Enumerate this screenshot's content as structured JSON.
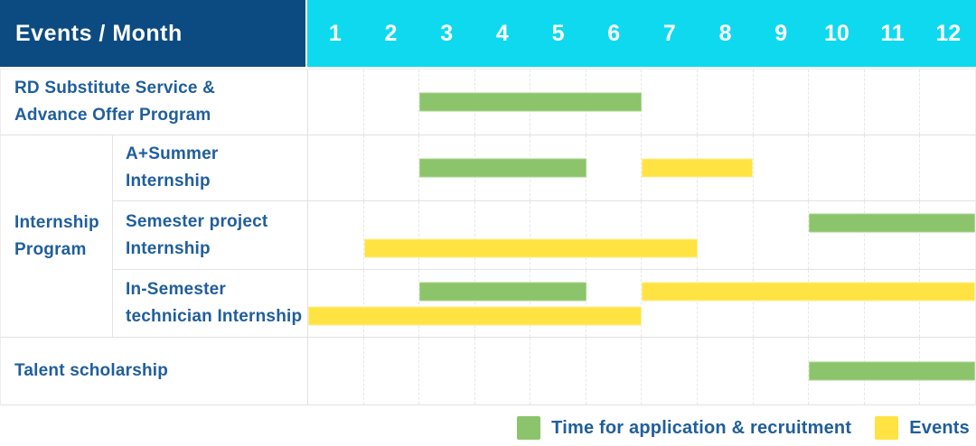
{
  "colors": {
    "header_bg": "#0B4B81",
    "months_bg": "#0FD9EF",
    "bar_green": "#8CC46B",
    "bar_yellow": "#FFE342",
    "label_text": "#1F5E9C"
  },
  "header": {
    "title": "Events / Month",
    "months": [
      "1",
      "2",
      "3",
      "4",
      "5",
      "6",
      "7",
      "8",
      "9",
      "10",
      "11",
      "12"
    ]
  },
  "rows": [
    {
      "kind": "simple",
      "id": "rd-substitute",
      "label_lines": [
        "RD Substitute Service &",
        "Advance Offer Program"
      ],
      "bars": [
        {
          "color": "green",
          "start": 3,
          "end": 6,
          "lane": "single"
        }
      ]
    },
    {
      "kind": "group",
      "id": "internship-program",
      "label_lines": [
        "Internship",
        "Program"
      ],
      "children": [
        {
          "id": "a-plus-summer",
          "label_lines": [
            "A+Summer",
            "Internship"
          ],
          "bars": [
            {
              "color": "green",
              "start": 3,
              "end": 5,
              "lane": "single"
            },
            {
              "color": "yellow",
              "start": 7,
              "end": 8,
              "lane": "single"
            }
          ]
        },
        {
          "id": "semester-project",
          "label_lines": [
            "Semester project",
            "Internship"
          ],
          "bars": [
            {
              "color": "green",
              "start": 10,
              "end": 12,
              "lane": "upper"
            },
            {
              "color": "yellow",
              "start": 2,
              "end": 7,
              "lane": "lower"
            }
          ]
        },
        {
          "id": "in-semester-technician",
          "label_lines": [
            "In-Semester",
            "technician Internship"
          ],
          "bars": [
            {
              "color": "green",
              "start": 3,
              "end": 5,
              "lane": "upper"
            },
            {
              "color": "yellow",
              "start": 7,
              "end": 12,
              "lane": "upper"
            },
            {
              "color": "yellow",
              "start": 1,
              "end": 6,
              "lane": "lower"
            }
          ]
        }
      ]
    },
    {
      "kind": "simple",
      "id": "talent-scholarship",
      "label_lines": [
        "Talent scholarship"
      ],
      "bars": [
        {
          "color": "green",
          "start": 10,
          "end": 12,
          "lane": "single"
        }
      ]
    }
  ],
  "legend": [
    {
      "color": "green",
      "label": "Time for application & recruitment"
    },
    {
      "color": "yellow",
      "label": "Events"
    }
  ],
  "chart_data": {
    "type": "gantt",
    "title": "Events / Month",
    "x_axis_months": [
      1,
      2,
      3,
      4,
      5,
      6,
      7,
      8,
      9,
      10,
      11,
      12
    ],
    "series_legend": {
      "green": "Time for application & recruitment",
      "yellow": "Events"
    },
    "tasks": [
      {
        "group": null,
        "name": "RD Substitute Service & Advance Offer Program",
        "application_recruitment_months": [
          [
            3,
            6
          ]
        ],
        "events_months": []
      },
      {
        "group": "Internship Program",
        "name": "A+Summer Internship",
        "application_recruitment_months": [
          [
            3,
            5
          ]
        ],
        "events_months": [
          [
            7,
            8
          ]
        ]
      },
      {
        "group": "Internship Program",
        "name": "Semester project Internship",
        "application_recruitment_months": [
          [
            10,
            12
          ]
        ],
        "events_months": [
          [
            2,
            7
          ]
        ]
      },
      {
        "group": "Internship Program",
        "name": "In-Semester technician Internship",
        "application_recruitment_months": [
          [
            3,
            5
          ]
        ],
        "events_months": [
          [
            1,
            6
          ],
          [
            7,
            12
          ]
        ]
      },
      {
        "group": null,
        "name": "Talent scholarship",
        "application_recruitment_months": [
          [
            10,
            12
          ]
        ],
        "events_months": []
      }
    ],
    "layout": {
      "grid": "dashed vertical month separators",
      "legend_position": "bottom-right"
    }
  }
}
